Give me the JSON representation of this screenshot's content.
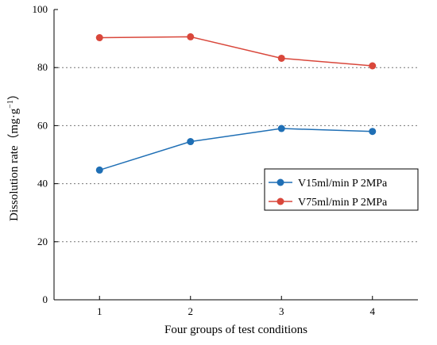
{
  "chart_data": {
    "type": "line",
    "x": [
      1,
      2,
      3,
      4
    ],
    "xlabel": "Four groups of test conditions",
    "ylabel": "Dissolution rate（mg·g",
    "ylabel_sup": "−1",
    "ylabel_close": "）",
    "xlim": [
      0.5,
      4.5
    ],
    "ylim": [
      0,
      100
    ],
    "xticks": [
      1,
      2,
      3,
      4
    ],
    "yticks": [
      0,
      20,
      40,
      60,
      80,
      100
    ],
    "grid": "horizontal-dotted",
    "legend_position": "right",
    "series": [
      {
        "name": "V15ml/min  P 2MPa",
        "color": "#1f6fb5",
        "values": [
          44.7,
          54.5,
          59.0,
          58.0
        ]
      },
      {
        "name": "V75ml/min  P 2MPa",
        "color": "#d9473b",
        "values": [
          90.3,
          90.6,
          83.2,
          80.6
        ]
      }
    ]
  }
}
